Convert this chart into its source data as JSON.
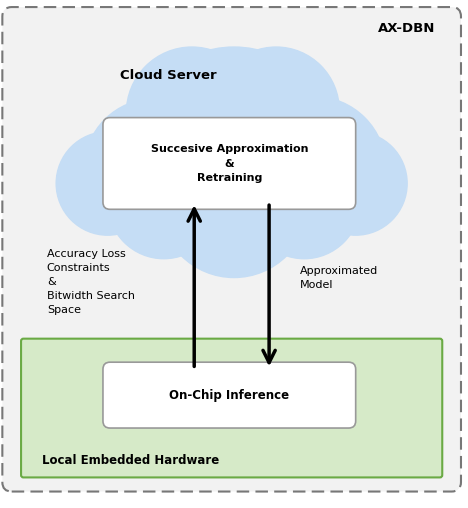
{
  "title": "AX-DBN",
  "cloud_label": "Cloud Server",
  "cloud_box_text": "Succesive Approximation\n&\nRetraining",
  "hardware_label": "Local Embedded Hardware",
  "hardware_box_text": "On-Chip Inference",
  "left_arrow_label": "Accuracy Loss\nConstraints\n&\nBitwidth Search\nSpace",
  "right_arrow_label": "Approximated\nModel",
  "outer_bg": "#f2f2f2",
  "cloud_color": "#c5ddf5",
  "hardware_bg": "#d6eac8",
  "hardware_edge": "#6aaa44",
  "box_color": "#ffffff",
  "box_edge": "#999999",
  "outer_edge": "#777777",
  "arrow_color": "#000000",
  "figsize": [
    4.68,
    5.08
  ],
  "dpi": 100,
  "cloud_circles": [
    [
      5.0,
      7.6,
      2.2
    ],
    [
      3.3,
      7.2,
      1.5
    ],
    [
      6.7,
      7.2,
      1.55
    ],
    [
      4.1,
      8.4,
      1.4
    ],
    [
      5.9,
      8.45,
      1.35
    ],
    [
      2.3,
      6.9,
      1.1
    ],
    [
      7.6,
      6.9,
      1.1
    ],
    [
      5.0,
      6.5,
      1.6
    ],
    [
      3.5,
      6.5,
      1.2
    ],
    [
      6.5,
      6.5,
      1.2
    ]
  ]
}
